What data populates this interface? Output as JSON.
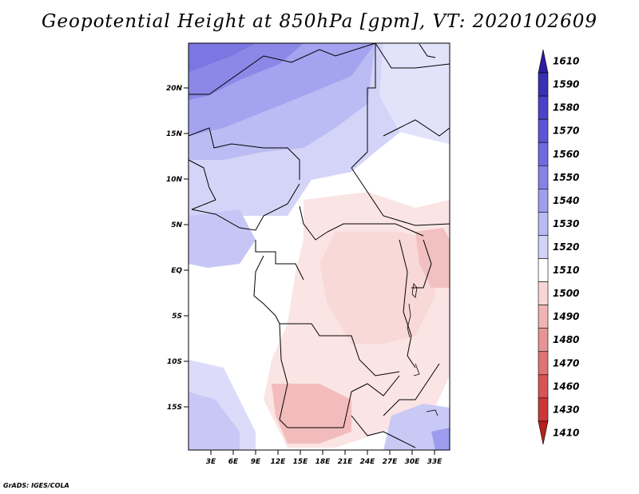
{
  "title": "Geopotential Height at 850hPa [gpm], VT: 2020102609",
  "credit": "GrADS: IGES/COLA",
  "lat_ticks": [
    "20N",
    "15N",
    "10N",
    "5N",
    "EQ",
    "5S",
    "10S",
    "15S"
  ],
  "lon_ticks": [
    "3E",
    "6E",
    "9E",
    "12E",
    "15E",
    "18E",
    "21E",
    "24E",
    "27E",
    "30E",
    "33E"
  ],
  "colorbar": {
    "levels": [
      "1610",
      "1590",
      "1580",
      "1570",
      "1560",
      "1550",
      "1540",
      "1530",
      "1520",
      "1510",
      "1500",
      "1490",
      "1480",
      "1470",
      "1460",
      "1430",
      "1410"
    ],
    "colors": [
      "#2c1e9e",
      "#3a30b4",
      "#4a42c8",
      "#5c55d6",
      "#6e6ae0",
      "#8683e8",
      "#9e9eef",
      "#b9b9f4",
      "#d2d2f8",
      "#ffffff",
      "#f8d6d6",
      "#f0b4b4",
      "#e89494",
      "#e07474",
      "#d85454",
      "#cc3838",
      "#b8201e"
    ]
  }
}
